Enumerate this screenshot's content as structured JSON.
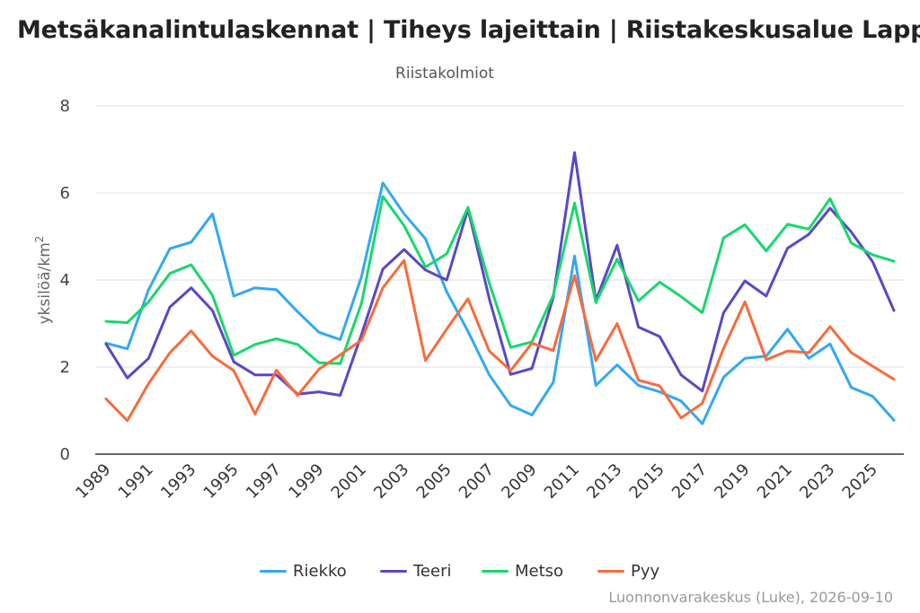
{
  "header": {
    "title": "Metsäkanalintulaskennat | Tiheys lajeittain | Riistakeskusalue Lappi",
    "subtitle": "Riistakolmiot"
  },
  "credit": "Luonnonvarakeskus (Luke), 2026-09-10",
  "colors": {
    "Riekko": "#33a8f2",
    "Teeri": "#5a48c5",
    "Metso": "#17d86b",
    "Pyy": "#f96a3c"
  },
  "chart_data": {
    "type": "line",
    "title": "Metsäkanalintulaskennat | Tiheys lajeittain | Riistakeskusalue Lappi",
    "subtitle": "Riistakolmiot",
    "ylabel": "yksilöä/km",
    "ylabel_sup": "2",
    "xlabel": "",
    "ylim": [
      0,
      8
    ],
    "yticks": [
      0,
      2,
      4,
      6,
      8
    ],
    "x": [
      1989,
      1990,
      1991,
      1992,
      1993,
      1994,
      1995,
      1996,
      1997,
      1998,
      1999,
      2000,
      2001,
      2002,
      2003,
      2004,
      2005,
      2006,
      2007,
      2008,
      2009,
      2010,
      2011,
      2012,
      2013,
      2014,
      2015,
      2016,
      2017,
      2018,
      2019,
      2020,
      2021,
      2022,
      2023,
      2024,
      2025,
      2026
    ],
    "xtick_labels": [
      "1989",
      "1991",
      "1993",
      "1995",
      "1997",
      "1999",
      "2001",
      "2003",
      "2005",
      "2007",
      "2009",
      "2011",
      "2013",
      "2015",
      "2017",
      "2019",
      "2021",
      "2023",
      "2025"
    ],
    "grid": "horizontal",
    "legend_position": "bottom-center",
    "series": [
      {
        "name": "Riekko",
        "values": [
          2.55,
          2.42,
          3.78,
          4.72,
          4.87,
          5.52,
          3.63,
          3.82,
          3.78,
          3.27,
          2.8,
          2.63,
          4.08,
          6.23,
          5.52,
          4.95,
          3.73,
          2.82,
          1.82,
          1.12,
          0.9,
          1.65,
          4.55,
          1.58,
          2.05,
          1.58,
          1.43,
          1.22,
          0.7,
          1.77,
          2.2,
          2.25,
          2.87,
          2.2,
          2.53,
          1.53,
          1.33,
          0.78
        ]
      },
      {
        "name": "Teeri",
        "values": [
          2.53,
          1.75,
          2.2,
          3.38,
          3.82,
          3.3,
          2.12,
          1.82,
          1.82,
          1.38,
          1.43,
          1.35,
          2.75,
          4.25,
          4.7,
          4.23,
          4.0,
          5.63,
          3.57,
          1.83,
          1.97,
          3.6,
          6.93,
          3.53,
          4.8,
          2.92,
          2.7,
          1.82,
          1.45,
          3.25,
          3.98,
          3.63,
          4.73,
          5.05,
          5.65,
          5.1,
          4.42,
          3.3
        ]
      },
      {
        "name": "Metso",
        "values": [
          3.05,
          3.02,
          3.5,
          4.15,
          4.35,
          3.65,
          2.27,
          2.52,
          2.65,
          2.52,
          2.1,
          2.08,
          3.47,
          5.92,
          5.25,
          4.3,
          4.6,
          5.67,
          3.93,
          2.45,
          2.58,
          3.65,
          5.77,
          3.48,
          4.48,
          3.52,
          3.95,
          3.62,
          3.25,
          4.97,
          5.27,
          4.67,
          5.28,
          5.17,
          5.87,
          4.85,
          4.58,
          4.43
        ]
      },
      {
        "name": "Pyy",
        "values": [
          1.27,
          0.77,
          1.62,
          2.33,
          2.83,
          2.25,
          1.92,
          0.92,
          1.93,
          1.35,
          1.95,
          2.28,
          2.62,
          3.82,
          4.45,
          2.15,
          2.87,
          3.57,
          2.37,
          1.92,
          2.55,
          2.38,
          4.1,
          2.15,
          3.0,
          1.7,
          1.57,
          0.83,
          1.17,
          2.43,
          3.5,
          2.17,
          2.37,
          2.33,
          2.93,
          2.33,
          2.02,
          1.72
        ]
      }
    ]
  }
}
